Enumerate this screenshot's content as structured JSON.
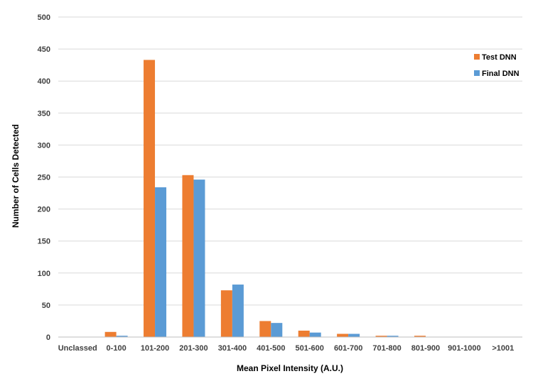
{
  "chart_data": {
    "type": "bar",
    "title": "",
    "xlabel": "Mean Pixel Intensity (A.U.)",
    "ylabel": "Number of Cells Detected",
    "ylim": [
      0,
      500
    ],
    "yticks": [
      0,
      50,
      100,
      150,
      200,
      250,
      300,
      350,
      400,
      450,
      500
    ],
    "grid": true,
    "legend_position": "top-right",
    "categories": [
      "Unclassed",
      "0-100",
      "101-200",
      "201-300",
      "301-400",
      "401-500",
      "501-600",
      "601-700",
      "701-800",
      "801-900",
      "901-1000",
      ">1001"
    ],
    "series": [
      {
        "name": "Test DNN",
        "color": "#ED7D31",
        "values": [
          0,
          8,
          433,
          253,
          73,
          25,
          10,
          5,
          2,
          2,
          0,
          0
        ]
      },
      {
        "name": "Final DNN",
        "color": "#5B9BD5",
        "values": [
          0,
          2,
          234,
          246,
          82,
          22,
          7,
          5,
          2,
          0,
          0,
          0
        ]
      }
    ]
  },
  "colors": {
    "gridline": "#D9D9D9",
    "axis": "#BFBFBF"
  }
}
